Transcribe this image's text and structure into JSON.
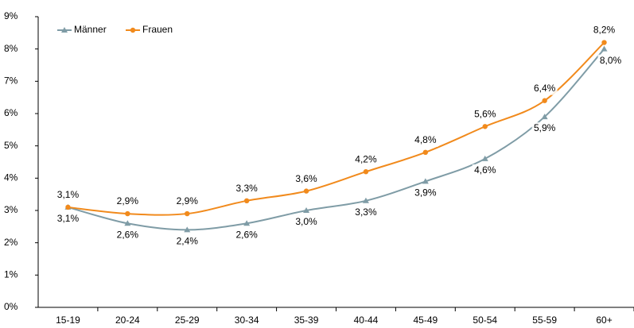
{
  "chart_data": {
    "type": "line",
    "categories": [
      "15-19",
      "20-24",
      "25-29",
      "30-34",
      "35-39",
      "40-44",
      "45-49",
      "50-54",
      "55-59",
      "60+"
    ],
    "series": [
      {
        "name": "Männer",
        "color": "#7f9ca6",
        "marker": "triangle",
        "values": [
          3.1,
          2.6,
          2.4,
          2.6,
          3.0,
          3.3,
          3.9,
          4.6,
          5.9,
          8.0
        ],
        "value_labels": [
          "3,1%",
          "2,6%",
          "2,4%",
          "2,6%",
          "3,0%",
          "3,3%",
          "3,9%",
          "4,6%",
          "5,9%",
          "8,0%"
        ]
      },
      {
        "name": "Frauen",
        "color": "#f18a1c",
        "marker": "circle",
        "values": [
          3.1,
          2.9,
          2.9,
          3.3,
          3.6,
          4.2,
          4.8,
          5.6,
          6.4,
          8.2
        ],
        "value_labels": [
          "3,1%",
          "2,9%",
          "2,9%",
          "3,3%",
          "3,6%",
          "4,2%",
          "4,8%",
          "5,6%",
          "6,4%",
          "8,2%"
        ]
      }
    ],
    "ylim": [
      0,
      9
    ],
    "yticks": [
      {
        "value": 0,
        "label": "0%"
      },
      {
        "value": 1,
        "label": "1%"
      },
      {
        "value": 2,
        "label": "2%"
      },
      {
        "value": 3,
        "label": "3%"
      },
      {
        "value": 4,
        "label": "4%"
      },
      {
        "value": 5,
        "label": "5%"
      },
      {
        "value": 6,
        "label": "6%"
      },
      {
        "value": 7,
        "label": "7%"
      },
      {
        "value": 8,
        "label": "8%"
      },
      {
        "value": 9,
        "label": "9%"
      }
    ],
    "grid": false,
    "legend": "top-left"
  }
}
